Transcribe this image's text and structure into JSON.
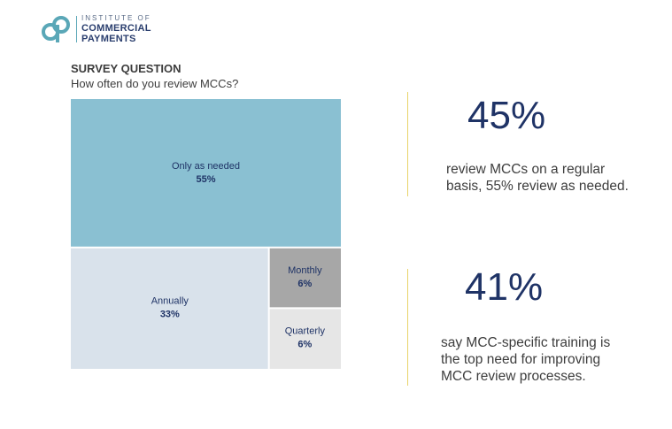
{
  "logo": {
    "line1": "INSTITUTE OF",
    "line2": "COMMERCIAL",
    "line3": "PAYMENTS",
    "colors": {
      "mark": "#5aa7b7",
      "text": "#2a3e6e"
    }
  },
  "survey": {
    "label": "SURVEY QUESTION",
    "question": "How often do you review MCCs?"
  },
  "chart_data": {
    "type": "treemap",
    "title": "",
    "categories": [
      "Only as needed",
      "Annually",
      "Monthly",
      "Quarterly"
    ],
    "values": [
      55,
      33,
      6,
      6
    ],
    "value_labels": [
      "55%",
      "33%",
      "6%",
      "6%"
    ],
    "colors": [
      "#8ac0d2",
      "#d9e2eb",
      "#a7a7a7",
      "#e6e6e6"
    ]
  },
  "stats": [
    {
      "value": "45%",
      "description_lines": [
        "review MCCs on a regular",
        "basis, 55% review as needed."
      ]
    },
    {
      "value": "41%",
      "description_lines": [
        "say MCC-specific training is",
        "the top need for improving",
        "MCC review processes."
      ]
    }
  ]
}
